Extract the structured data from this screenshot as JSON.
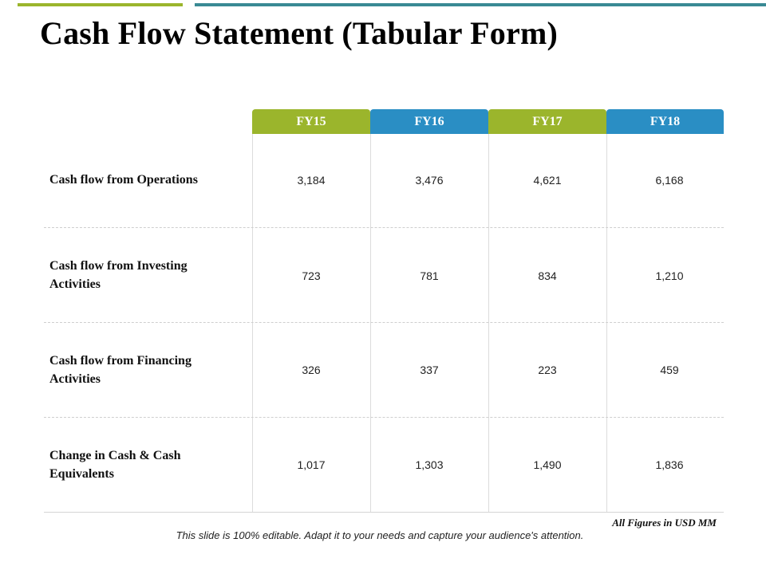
{
  "title": "Cash Flow Statement (Tabular Form)",
  "colors": {
    "green": "#9bb52c",
    "blue": "#2a8ec4",
    "teal": "#3a8a94"
  },
  "columns": [
    "FY15",
    "FY16",
    "FY17",
    "FY18"
  ],
  "rows": [
    {
      "label": "Cash flow from Operations",
      "values": [
        "3,184",
        "3,476",
        "4,621",
        "6,168"
      ]
    },
    {
      "label": "Cash flow from Investing Activities",
      "values": [
        "723",
        "781",
        "834",
        "1,210"
      ]
    },
    {
      "label": "Cash flow from Financing Activities",
      "values": [
        "326",
        "337",
        "223",
        "459"
      ]
    },
    {
      "label": "Change in Cash & Cash Equivalents",
      "values": [
        "1,017",
        "1,303",
        "1,490",
        "1,836"
      ]
    }
  ],
  "note": "All Figures in USD MM",
  "footer": "This slide is 100% editable. Adapt it to your needs and capture your audience's attention."
}
